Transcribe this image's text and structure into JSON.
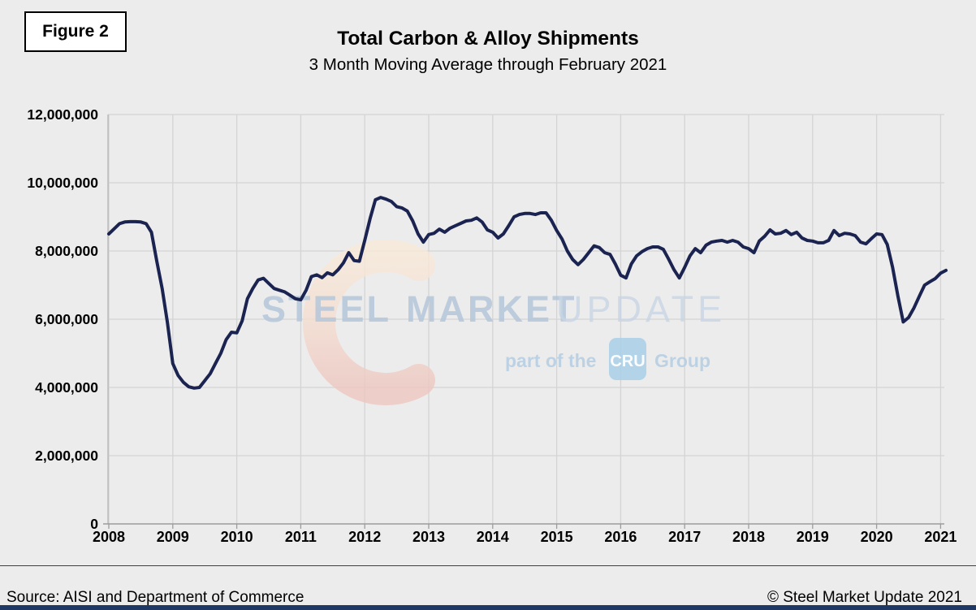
{
  "figure_label": "Figure 2",
  "title": "Total Carbon & Alloy Shipments",
  "subtitle": "3 Month Moving Average through February 2021",
  "watermark": {
    "word1": "STEEL",
    "word2": "MARKET",
    "word3": "UPDATE",
    "tagline_prefix": "part of the",
    "tagline_logo": "CRU",
    "tagline_suffix": "Group"
  },
  "footer": {
    "source": "Source: AISI and Department of Commerce",
    "copyright": "© Steel Market Update 2021"
  },
  "colors": {
    "background": "#ececec",
    "line": "#1b2451",
    "grid": "#d4d4d4",
    "axis": "#9c9c9c",
    "bottom_bar": "#1f3864",
    "watermark_text": "#b5c7da",
    "watermark_text_light": "#c8d6e5",
    "crescent_top": "#f8e9d9",
    "crescent_bottom": "#edc6c0",
    "cru_box": "#a9cfe9"
  },
  "chart_data": {
    "type": "line",
    "title": "Total Carbon & Alloy Shipments",
    "subtitle": "3 Month Moving Average through February 2021",
    "x_start": {
      "year": 2008,
      "month": 1
    },
    "x_end": {
      "year": 2021,
      "month": 2
    },
    "x_tick_labels": [
      "2008",
      "2009",
      "2010",
      "2011",
      "2012",
      "2013",
      "2014",
      "2015",
      "2016",
      "2017",
      "2018",
      "2019",
      "2020",
      "2021"
    ],
    "y_tick_labels": [
      "0",
      "2,000,000",
      "4,000,000",
      "6,000,000",
      "8,000,000",
      "10,000,000",
      "12,000,000"
    ],
    "ylim": [
      0,
      12000000
    ],
    "y_step": 2000000,
    "grid": true,
    "legend": "none",
    "series": [
      {
        "name": "Total Carbon & Alloy Shipments, 3-month moving average (net tons)",
        "monthly_values": [
          8500000,
          8650000,
          8800000,
          8850000,
          8860000,
          8860000,
          8850000,
          8800000,
          8550000,
          7700000,
          6900000,
          5900000,
          4700000,
          4350000,
          4150000,
          4020000,
          3980000,
          4000000,
          4200000,
          4400000,
          4700000,
          5000000,
          5400000,
          5620000,
          5600000,
          5950000,
          6600000,
          6900000,
          7150000,
          7200000,
          7050000,
          6900000,
          6850000,
          6800000,
          6700000,
          6600000,
          6570000,
          6850000,
          7250000,
          7300000,
          7220000,
          7360000,
          7300000,
          7450000,
          7650000,
          7950000,
          7720000,
          7700000,
          8310000,
          8950000,
          9500000,
          9570000,
          9520000,
          9450000,
          9300000,
          9260000,
          9170000,
          8880000,
          8500000,
          8260000,
          8480000,
          8520000,
          8640000,
          8550000,
          8670000,
          8740000,
          8810000,
          8880000,
          8900000,
          8970000,
          8850000,
          8620000,
          8550000,
          8380000,
          8500000,
          8740000,
          9000000,
          9070000,
          9100000,
          9100000,
          9070000,
          9120000,
          9120000,
          8900000,
          8600000,
          8350000,
          8000000,
          7750000,
          7600000,
          7750000,
          7950000,
          8150000,
          8100000,
          7950000,
          7900000,
          7620000,
          7290000,
          7210000,
          7620000,
          7860000,
          7980000,
          8070000,
          8120000,
          8120000,
          8050000,
          7760000,
          7450000,
          7210000,
          7520000,
          7860000,
          8070000,
          7950000,
          8170000,
          8260000,
          8290000,
          8310000,
          8260000,
          8310000,
          8260000,
          8120000,
          8070000,
          7950000,
          8290000,
          8430000,
          8620000,
          8500000,
          8520000,
          8600000,
          8480000,
          8550000,
          8380000,
          8310000,
          8290000,
          8240000,
          8240000,
          8310000,
          8600000,
          8450000,
          8520000,
          8500000,
          8450000,
          8260000,
          8210000,
          8360000,
          8500000,
          8480000,
          8190000,
          7520000,
          6670000,
          5920000,
          6050000,
          6330000,
          6670000,
          7000000,
          7100000,
          7190000,
          7350000,
          7430000
        ]
      }
    ]
  }
}
